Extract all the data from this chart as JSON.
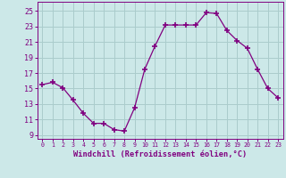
{
  "x": [
    0,
    1,
    2,
    3,
    4,
    5,
    6,
    7,
    8,
    9,
    10,
    11,
    12,
    13,
    14,
    15,
    16,
    17,
    18,
    19,
    20,
    21,
    22,
    23
  ],
  "y": [
    15.5,
    15.8,
    15.1,
    13.5,
    11.8,
    10.5,
    10.5,
    9.7,
    9.5,
    12.5,
    17.5,
    20.5,
    23.2,
    23.2,
    23.2,
    23.2,
    24.8,
    24.7,
    22.5,
    21.2,
    20.2,
    17.5,
    15.0,
    13.8
  ],
  "line_color": "#800080",
  "marker": "+",
  "marker_size": 5,
  "bg_color": "#cce8e8",
  "grid_color": "#aacccc",
  "xlabel": "Windchill (Refroidissement éolien,°C)",
  "xlabel_color": "#800080",
  "tick_color": "#800080",
  "yticks": [
    9,
    11,
    13,
    15,
    17,
    19,
    21,
    23,
    25
  ],
  "ylim": [
    8.5,
    26.2
  ],
  "xlim": [
    -0.5,
    23.5
  ],
  "xtick_labels": [
    "0",
    "1",
    "2",
    "3",
    "4",
    "5",
    "6",
    "7",
    "8",
    "9",
    "10",
    "11",
    "12",
    "13",
    "14",
    "15",
    "16",
    "17",
    "18",
    "19",
    "20",
    "21",
    "22",
    "23"
  ]
}
